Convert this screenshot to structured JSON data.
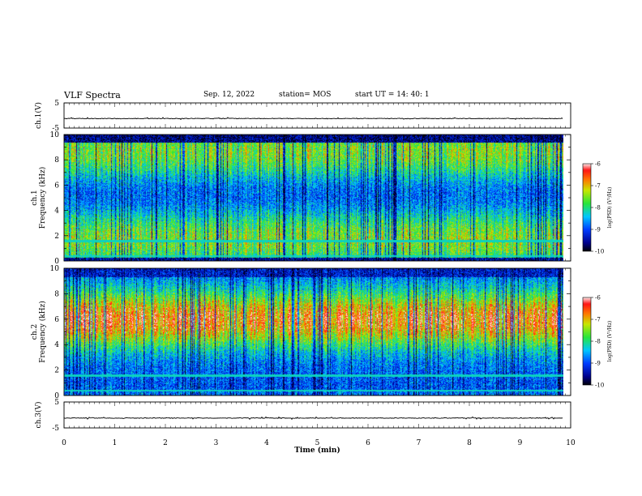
{
  "header": {
    "title": "VLF Spectra",
    "date": "Sep. 12, 2022",
    "station": "station= MOS",
    "start": "start  UT =   14: 40: 1"
  },
  "chart_data": [
    {
      "type": "line",
      "name": "ch1-waveform",
      "ylabel": "ch.1(V)",
      "ylim": [
        -5,
        5
      ],
      "yticks": [
        "5",
        "-5"
      ],
      "xlim": [
        0,
        10
      ],
      "level": -1.2
    },
    {
      "type": "heatmap",
      "name": "ch1-spectrogram",
      "ylabel": "ch.1\nFrequency  (kHz)",
      "ylim": [
        0,
        10
      ],
      "yticks": [
        "0",
        "2",
        "4",
        "6",
        "8",
        "10"
      ],
      "xlim": [
        0,
        9.85
      ],
      "colorbar": {
        "label": "log(PSD) (V²/Hz)",
        "ticks": [
          "-6",
          "-7",
          "-8",
          "-9",
          "-10"
        ],
        "range": [
          -10,
          -6
        ]
      },
      "profile": "broadband"
    },
    {
      "type": "heatmap",
      "name": "ch2-spectrogram",
      "ylabel": "ch.2\nFrequency  (kHz)",
      "ylim": [
        0,
        10
      ],
      "yticks": [
        "0",
        "2",
        "4",
        "6",
        "8",
        "10"
      ],
      "xlim": [
        0,
        9.85
      ],
      "colorbar": {
        "label": "log(PSD) (V²/Hz)",
        "ticks": [
          "-6",
          "-7",
          "-8",
          "-9",
          "-10"
        ],
        "range": [
          -10,
          -6
        ]
      },
      "profile": "midband"
    },
    {
      "type": "line",
      "name": "ch3-waveform",
      "ylabel": "ch.3(V)",
      "ylim": [
        -5,
        5
      ],
      "yticks": [
        "5",
        "-5"
      ],
      "xlim": [
        0,
        10
      ],
      "level": -1.2
    }
  ],
  "xaxis": {
    "label": "Time  (min)",
    "ticks": [
      "0",
      "1",
      "2",
      "3",
      "4",
      "5",
      "6",
      "7",
      "8",
      "9",
      "10"
    ],
    "range": [
      0,
      10
    ]
  },
  "colors": {
    "axis": "#000000",
    "background": "#ffffff"
  }
}
